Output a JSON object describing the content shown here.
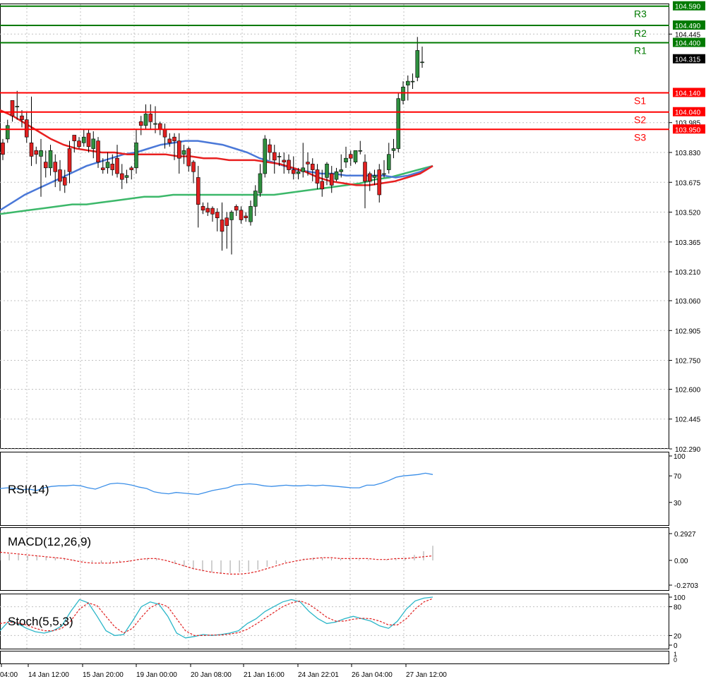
{
  "colors": {
    "background": "#ffffff",
    "grid": "#c0c0c0",
    "frame": "#000000",
    "bull_candle": "#2f8f3f",
    "bear_candle": "#e02020",
    "wick": "#000000",
    "resistance": "#007a00",
    "support": "#ff0000",
    "ma_red": "#e82020",
    "ma_blue": "#4a78d8",
    "ma_green": "#3cb86a",
    "rsi_line": "#3a8ee8",
    "macd_signal": "#e02020",
    "macd_hist": "#a0a0a0",
    "stoch_main": "#2ab6c8",
    "stoch_signal": "#e02020",
    "price_tag_bg": "#000000",
    "price_tag_text": "#ffffff"
  },
  "chart_data": [
    {
      "type": "candlestick",
      "ylim": [
        102.29,
        104.6
      ],
      "price_axis_ticks": [
        "104.445",
        "103.985",
        "103.830",
        "103.675",
        "103.520",
        "103.365",
        "103.210",
        "103.060",
        "102.905",
        "102.750",
        "102.600",
        "102.445",
        "102.290"
      ],
      "current_price": "104.315",
      "levels": [
        {
          "name": "R3",
          "value": "104.590",
          "kind": "resistance"
        },
        {
          "name": "R2",
          "value": "104.490",
          "kind": "resistance"
        },
        {
          "name": "R1",
          "value": "104.400",
          "kind": "resistance"
        },
        {
          "name": "S1",
          "value": "104.140",
          "kind": "support"
        },
        {
          "name": "S2",
          "value": "104.040",
          "kind": "support"
        },
        {
          "name": "S3",
          "value": "103.950",
          "kind": "support"
        }
      ],
      "candles": [
        [
          103.88,
          103.82,
          103.9,
          103.79
        ],
        [
          103.9,
          103.97,
          104.0,
          103.88
        ],
        [
          104.1,
          104.02,
          104.1,
          103.99
        ],
        [
          104.07,
          104.07,
          104.15,
          104.0
        ],
        [
          104.02,
          104.0,
          104.05,
          103.96
        ],
        [
          104.0,
          103.91,
          104.04,
          103.88
        ],
        [
          103.88,
          103.81,
          104.12,
          103.76
        ],
        [
          103.84,
          103.82,
          103.86,
          103.77
        ],
        [
          103.81,
          103.84,
          103.9,
          103.6
        ],
        [
          103.78,
          103.75,
          103.84,
          103.7
        ],
        [
          103.75,
          103.84,
          103.87,
          103.71
        ],
        [
          103.78,
          103.73,
          103.82,
          103.65
        ],
        [
          103.74,
          103.68,
          103.79,
          103.63
        ],
        [
          103.7,
          103.66,
          103.74,
          103.62
        ],
        [
          103.85,
          103.73,
          103.89,
          103.67
        ],
        [
          103.92,
          103.89,
          103.92,
          103.83
        ],
        [
          103.89,
          103.86,
          103.91,
          103.85
        ],
        [
          103.88,
          103.91,
          103.95,
          103.86
        ],
        [
          103.93,
          103.86,
          103.95,
          103.83
        ],
        [
          103.85,
          103.9,
          103.94,
          103.8
        ],
        [
          103.89,
          103.78,
          103.91,
          103.75
        ],
        [
          103.75,
          103.74,
          103.8,
          103.72
        ],
        [
          103.75,
          103.78,
          103.83,
          103.72
        ],
        [
          103.77,
          103.74,
          103.82,
          103.71
        ],
        [
          103.8,
          103.72,
          103.87,
          103.7
        ],
        [
          103.72,
          103.69,
          103.77,
          103.64
        ],
        [
          103.7,
          103.71,
          103.74,
          103.67
        ],
        [
          103.75,
          103.74,
          103.76,
          103.69
        ],
        [
          103.75,
          103.88,
          103.95,
          103.72
        ],
        [
          103.99,
          103.97,
          104.02,
          103.92
        ],
        [
          103.97,
          104.03,
          104.08,
          103.95
        ],
        [
          104.03,
          103.99,
          104.08,
          103.95
        ],
        [
          103.98,
          103.98,
          104.07,
          103.93
        ],
        [
          103.98,
          103.95,
          103.99,
          103.92
        ],
        [
          103.95,
          103.91,
          103.98,
          103.85
        ],
        [
          103.9,
          103.88,
          103.93,
          103.86
        ],
        [
          103.91,
          103.89,
          103.93,
          103.79
        ],
        [
          103.89,
          103.8,
          103.93,
          103.72
        ],
        [
          103.82,
          103.84,
          103.87,
          103.77
        ],
        [
          103.85,
          103.76,
          103.86,
          103.73
        ],
        [
          103.78,
          103.73,
          103.79,
          103.67
        ],
        [
          103.7,
          103.56,
          103.76,
          103.44
        ],
        [
          103.55,
          103.53,
          103.57,
          103.51
        ],
        [
          103.54,
          103.52,
          103.57,
          103.5
        ],
        [
          103.54,
          103.51,
          103.55,
          103.47
        ],
        [
          103.52,
          103.49,
          103.54,
          103.42
        ],
        [
          103.48,
          103.42,
          103.57,
          103.32
        ],
        [
          103.49,
          103.45,
          103.52,
          103.33
        ],
        [
          103.48,
          103.52,
          103.53,
          103.3
        ],
        [
          103.55,
          103.53,
          103.56,
          103.5
        ],
        [
          103.53,
          103.48,
          103.55,
          103.46
        ],
        [
          103.5,
          103.49,
          103.52,
          103.47
        ],
        [
          103.47,
          103.55,
          103.58,
          103.45
        ],
        [
          103.55,
          103.63,
          103.66,
          103.5
        ],
        [
          103.62,
          103.72,
          103.77,
          103.6
        ],
        [
          103.72,
          103.9,
          103.92,
          103.7
        ],
        [
          103.87,
          103.83,
          103.9,
          103.79
        ],
        [
          103.83,
          103.79,
          103.87,
          103.72
        ],
        [
          103.81,
          103.81,
          103.83,
          103.76
        ],
        [
          103.79,
          103.78,
          103.83,
          103.72
        ],
        [
          103.79,
          103.74,
          103.82,
          103.72
        ],
        [
          103.74,
          103.72,
          103.81,
          103.69
        ],
        [
          103.72,
          103.73,
          103.75,
          103.69
        ],
        [
          103.73,
          103.75,
          103.88,
          103.7
        ],
        [
          103.78,
          103.77,
          103.83,
          103.71
        ],
        [
          103.77,
          103.74,
          103.8,
          103.68
        ],
        [
          103.74,
          103.67,
          103.77,
          103.64
        ],
        [
          103.68,
          103.64,
          103.74,
          103.6
        ],
        [
          103.7,
          103.77,
          103.78,
          103.66
        ],
        [
          103.72,
          103.66,
          103.76,
          103.62
        ],
        [
          103.69,
          103.73,
          103.75,
          103.68
        ],
        [
          103.73,
          103.74,
          103.82,
          103.7
        ],
        [
          103.78,
          103.8,
          103.86,
          103.75
        ],
        [
          103.82,
          103.8,
          103.84,
          103.76
        ],
        [
          103.78,
          103.84,
          103.84,
          103.77
        ],
        [
          103.84,
          103.84,
          103.89,
          103.82
        ],
        [
          103.78,
          103.68,
          103.82,
          103.54
        ],
        [
          103.72,
          103.68,
          103.73,
          103.63
        ],
        [
          103.7,
          103.71,
          103.74,
          103.66
        ],
        [
          103.74,
          103.61,
          103.77,
          103.57
        ],
        [
          103.72,
          103.72,
          103.79,
          103.7
        ],
        [
          103.74,
          103.82,
          103.88,
          103.72
        ],
        [
          103.84,
          103.85,
          103.9,
          103.8
        ],
        [
          103.85,
          104.11,
          104.14,
          103.83
        ],
        [
          104.1,
          104.17,
          104.2,
          104.08
        ],
        [
          104.18,
          104.2,
          104.23,
          104.1
        ],
        [
          104.2,
          104.2,
          104.24,
          104.16
        ],
        [
          104.22,
          104.36,
          104.43,
          104.2
        ],
        [
          104.3,
          104.3,
          104.38,
          104.27
        ]
      ],
      "ma_red": [
        104.05,
        104.02,
        103.98,
        103.94,
        103.9,
        103.87,
        103.85,
        103.84,
        103.83,
        103.83,
        103.82,
        103.82,
        103.82,
        103.82,
        103.81,
        103.81,
        103.8,
        103.8,
        103.79,
        103.79,
        103.79,
        103.78,
        103.77,
        103.75,
        103.73,
        103.7,
        103.68,
        103.67,
        103.66,
        103.66,
        103.67,
        103.68,
        103.7,
        103.72,
        103.76
      ],
      "ma_blue": [
        103.53,
        103.57,
        103.61,
        103.64,
        103.67,
        103.7,
        103.73,
        103.76,
        103.78,
        103.8,
        103.82,
        103.83,
        103.85,
        103.87,
        103.88,
        103.89,
        103.89,
        103.88,
        103.87,
        103.85,
        103.83,
        103.8,
        103.78,
        103.76,
        103.74,
        103.73,
        103.72,
        103.72,
        103.71,
        103.71,
        103.71,
        103.71,
        103.7,
        103.71,
        103.73,
        103.76
      ],
      "ma_green": [
        103.51,
        103.52,
        103.53,
        103.54,
        103.55,
        103.56,
        103.56,
        103.57,
        103.58,
        103.59,
        103.6,
        103.6,
        103.61,
        103.61,
        103.61,
        103.61,
        103.61,
        103.61,
        103.61,
        103.61,
        103.62,
        103.63,
        103.64,
        103.65,
        103.66,
        103.67,
        103.69,
        103.7,
        103.72,
        103.74,
        103.76
      ]
    },
    {
      "type": "line",
      "name": "RSI(14)",
      "ylim": [
        0,
        100
      ],
      "ticks": [
        "100",
        "70",
        "30"
      ],
      "values": [
        51,
        52,
        51,
        49,
        50,
        48,
        52,
        54,
        55,
        55,
        56,
        55,
        52,
        50,
        54,
        58,
        59,
        58,
        56,
        53,
        51,
        46,
        44,
        43,
        45,
        44,
        43,
        42,
        45,
        48,
        50,
        52,
        56,
        57,
        58,
        57,
        55,
        54,
        55,
        56,
        55,
        55,
        56,
        55,
        56,
        55,
        54,
        53,
        52,
        52,
        56,
        56,
        59,
        63,
        68,
        70,
        71,
        72,
        74,
        72
      ]
    },
    {
      "type": "line",
      "name": "MACD(12,26,9)",
      "ylim": [
        -0.2703,
        0.2927
      ],
      "ticks": [
        "0.2927",
        "0.00",
        "-0.2703"
      ],
      "signal": [
        0.09,
        0.08,
        0.07,
        0.06,
        0.05,
        0.04,
        0.03,
        0.02,
        0.0,
        -0.02,
        -0.03,
        -0.03,
        -0.03,
        -0.02,
        -0.01,
        0.01,
        0.02,
        0.02,
        0.0,
        -0.03,
        -0.06,
        -0.09,
        -0.11,
        -0.13,
        -0.14,
        -0.15,
        -0.15,
        -0.14,
        -0.12,
        -0.09,
        -0.06,
        -0.03,
        -0.01,
        0.01,
        0.02,
        0.03,
        0.03,
        0.02,
        0.02,
        0.02,
        0.02,
        0.01,
        0.01,
        0.02,
        0.02,
        0.03,
        0.04,
        0.05
      ],
      "hist": [
        0.08,
        0.07,
        0.06,
        0.05,
        0.05,
        0.04,
        0.03,
        0.02,
        0.01,
        -0.01,
        -0.02,
        -0.03,
        -0.03,
        -0.02,
        -0.01,
        0.01,
        0.02,
        0.02,
        0.0,
        -0.04,
        -0.07,
        -0.1,
        -0.12,
        -0.13,
        -0.14,
        -0.14,
        -0.13,
        -0.12,
        -0.1,
        -0.07,
        -0.04,
        -0.02,
        0.0,
        0.02,
        0.03,
        0.03,
        0.02,
        0.02,
        0.02,
        0.01,
        0.01,
        0.0,
        0.01,
        0.02,
        0.03,
        0.06,
        0.1,
        0.16
      ]
    },
    {
      "type": "line",
      "name": "Stoch(5,5,3)",
      "ylim": [
        0,
        100
      ],
      "ticks": [
        "100",
        "80",
        "20",
        "0"
      ],
      "main": [
        30,
        50,
        45,
        35,
        28,
        25,
        30,
        40,
        70,
        95,
        88,
        60,
        30,
        20,
        22,
        50,
        80,
        90,
        85,
        60,
        25,
        15,
        18,
        22,
        20,
        22,
        25,
        30,
        45,
        55,
        70,
        80,
        90,
        95,
        90,
        70,
        55,
        45,
        48,
        55,
        60,
        55,
        50,
        40,
        35,
        50,
        75,
        92,
        98,
        100
      ],
      "signal": [
        45,
        48,
        46,
        42,
        35,
        30,
        30,
        35,
        50,
        75,
        88,
        82,
        60,
        38,
        25,
        35,
        58,
        78,
        87,
        80,
        55,
        30,
        20,
        20,
        21,
        21,
        23,
        26,
        33,
        44,
        56,
        68,
        80,
        88,
        92,
        85,
        72,
        58,
        50,
        50,
        54,
        56,
        55,
        50,
        42,
        42,
        55,
        75,
        90,
        97
      ]
    }
  ],
  "time_axis_labels": [
    "04:00",
    "14 Jan 12:00",
    "15 Jan 20:00",
    "19 Jan 00:00",
    "20 Jan 08:00",
    "21 Jan 16:00",
    "24 Jan 22:01",
    "26 Jan 04:00",
    "27 Jan 12:00"
  ],
  "bottom_panel_ticks": [
    "1",
    "0"
  ]
}
